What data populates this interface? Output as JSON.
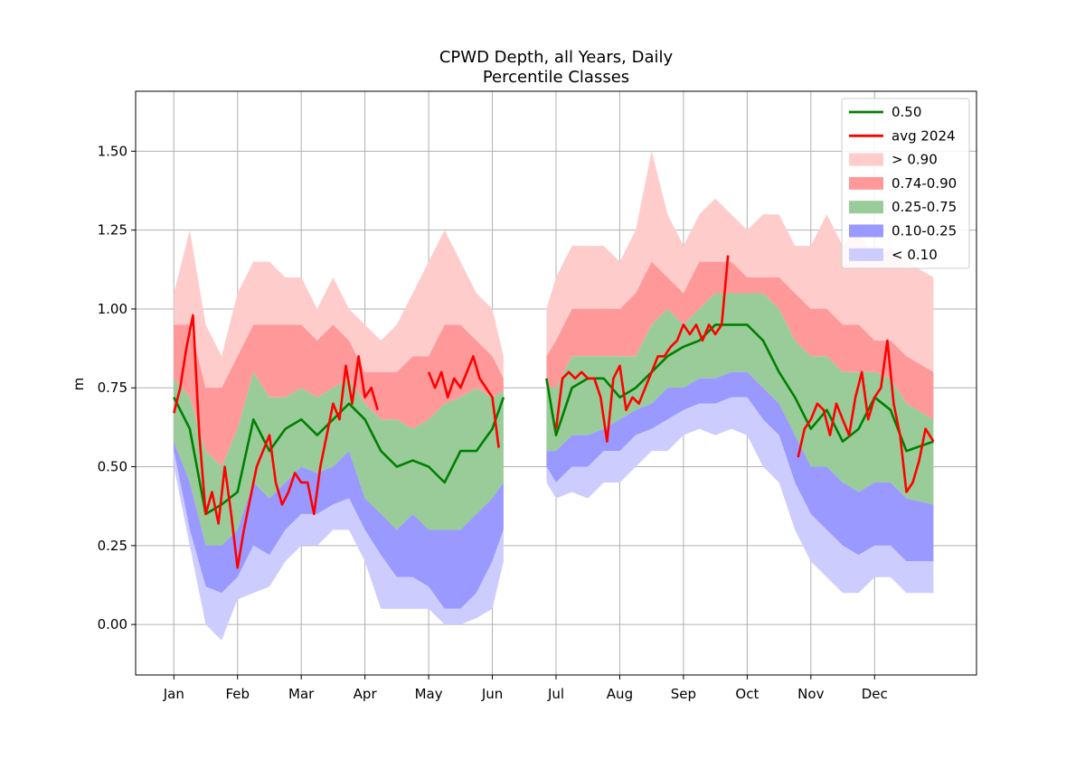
{
  "chart_data": {
    "type": "area",
    "title_line1": "CPWD Depth, all Years, Daily",
    "title_line2": "Percentile Classes",
    "ylabel": "m",
    "xlim": [
      -12,
      252
    ],
    "ylim": [
      -0.16,
      1.69
    ],
    "grid": true,
    "legend_placement": "top-right",
    "x_ticks": [
      {
        "label": "Jan",
        "x": 0
      },
      {
        "label": "Feb",
        "x": 20
      },
      {
        "label": "Mar",
        "x": 40
      },
      {
        "label": "Apr",
        "x": 60
      },
      {
        "label": "May",
        "x": 80
      },
      {
        "label": "Jun",
        "x": 100
      },
      {
        "label": "Jul",
        "x": 120
      },
      {
        "label": "Aug",
        "x": 140
      },
      {
        "label": "Sep",
        "x": 160
      },
      {
        "label": "Oct",
        "x": 180
      },
      {
        "label": "Nov",
        "x": 200
      },
      {
        "label": "Dec",
        "x": 220
      }
    ],
    "y_ticks": [
      {
        "label": "0.00",
        "value": 0.0
      },
      {
        "label": "0.25",
        "value": 0.25
      },
      {
        "label": "0.50",
        "value": 0.5
      },
      {
        "label": "0.75",
        "value": 0.75
      },
      {
        "label": "1.00",
        "value": 1.0
      },
      {
        "label": "1.25",
        "value": 1.25
      },
      {
        "label": "1.50",
        "value": 1.5
      }
    ],
    "series": [
      {
        "name": "0.50",
        "kind": "line",
        "color": "#008000"
      },
      {
        "name": "avg 2024",
        "kind": "line",
        "color": "#ff0000"
      },
      {
        "name": "> 0.90",
        "kind": "band",
        "color": "#ffcccc"
      },
      {
        "name": "0.74-0.90",
        "kind": "band",
        "color": "#ff9999"
      },
      {
        "name": "0.25-0.75",
        "kind": "band",
        "color": "#99cc99"
      },
      {
        "name": "0.10-0.25",
        "kind": "band",
        "color": "#9999ff"
      },
      {
        "name": "< 0.10",
        "kind": "band",
        "color": "#ccccff"
      }
    ],
    "segments": [
      {
        "x": [
          0,
          5,
          10,
          15,
          20,
          25,
          30,
          35,
          40,
          45,
          50,
          55,
          60,
          65,
          70,
          75,
          80,
          85,
          90,
          95,
          100,
          103.5
        ],
        "max": [
          1.05,
          1.25,
          0.95,
          0.85,
          1.05,
          1.15,
          1.15,
          1.1,
          1.1,
          1.0,
          1.1,
          1.0,
          0.95,
          0.9,
          0.95,
          1.05,
          1.15,
          1.25,
          1.15,
          1.05,
          1.0,
          0.85
        ],
        "p90": [
          0.95,
          0.95,
          0.75,
          0.75,
          0.85,
          0.95,
          0.95,
          0.95,
          0.95,
          0.9,
          0.95,
          0.9,
          0.8,
          0.8,
          0.8,
          0.85,
          0.85,
          0.95,
          0.95,
          0.9,
          0.85,
          0.78
        ],
        "p75": [
          0.78,
          0.72,
          0.55,
          0.5,
          0.62,
          0.8,
          0.72,
          0.72,
          0.75,
          0.72,
          0.75,
          0.78,
          0.7,
          0.65,
          0.65,
          0.62,
          0.65,
          0.7,
          0.72,
          0.75,
          0.72,
          0.74
        ],
        "p25": [
          0.58,
          0.45,
          0.25,
          0.25,
          0.3,
          0.45,
          0.4,
          0.45,
          0.5,
          0.48,
          0.5,
          0.55,
          0.4,
          0.35,
          0.3,
          0.35,
          0.3,
          0.3,
          0.3,
          0.35,
          0.4,
          0.45
        ],
        "p10": [
          0.55,
          0.3,
          0.12,
          0.1,
          0.15,
          0.25,
          0.22,
          0.3,
          0.35,
          0.35,
          0.38,
          0.4,
          0.3,
          0.22,
          0.15,
          0.15,
          0.12,
          0.05,
          0.05,
          0.1,
          0.2,
          0.3
        ],
        "min": [
          0.5,
          0.25,
          0.0,
          -0.05,
          0.08,
          0.1,
          0.12,
          0.2,
          0.25,
          0.25,
          0.3,
          0.3,
          0.2,
          0.05,
          0.05,
          0.05,
          0.05,
          0.0,
          0.0,
          0.02,
          0.05,
          0.2
        ],
        "median": [
          0.72,
          0.62,
          0.35,
          0.38,
          0.42,
          0.65,
          0.55,
          0.62,
          0.65,
          0.6,
          0.65,
          0.7,
          0.65,
          0.55,
          0.5,
          0.52,
          0.5,
          0.45,
          0.55,
          0.55,
          0.62,
          0.72
        ]
      },
      {
        "x": [
          117,
          120,
          125,
          130,
          135,
          140,
          145,
          150,
          155,
          160,
          165,
          170,
          175,
          180,
          185,
          190,
          195,
          200,
          205,
          210,
          215,
          220,
          225,
          230,
          238.5
        ],
        "max": [
          1.0,
          1.1,
          1.2,
          1.2,
          1.2,
          1.15,
          1.25,
          1.5,
          1.3,
          1.2,
          1.3,
          1.35,
          1.3,
          1.25,
          1.3,
          1.3,
          1.2,
          1.2,
          1.3,
          1.2,
          1.25,
          1.15,
          1.2,
          1.15,
          1.1
        ],
        "p90": [
          0.85,
          0.9,
          1.0,
          1.0,
          1.0,
          1.0,
          1.05,
          1.15,
          1.1,
          1.05,
          1.15,
          1.15,
          1.15,
          1.1,
          1.1,
          1.1,
          1.05,
          1.0,
          1.0,
          0.95,
          0.95,
          0.9,
          0.9,
          0.85,
          0.8
        ],
        "p75": [
          0.75,
          0.75,
          0.85,
          0.85,
          0.85,
          0.85,
          0.85,
          0.95,
          1.0,
          0.95,
          1.0,
          1.05,
          1.05,
          1.05,
          1.05,
          1.0,
          0.9,
          0.85,
          0.85,
          0.8,
          0.8,
          0.8,
          0.78,
          0.7,
          0.65
        ],
        "p25": [
          0.55,
          0.55,
          0.6,
          0.6,
          0.62,
          0.65,
          0.68,
          0.7,
          0.75,
          0.75,
          0.78,
          0.78,
          0.8,
          0.8,
          0.75,
          0.7,
          0.6,
          0.5,
          0.5,
          0.45,
          0.42,
          0.45,
          0.45,
          0.4,
          0.38
        ],
        "p10": [
          0.5,
          0.45,
          0.5,
          0.5,
          0.55,
          0.55,
          0.6,
          0.62,
          0.65,
          0.68,
          0.7,
          0.7,
          0.72,
          0.72,
          0.65,
          0.6,
          0.45,
          0.35,
          0.3,
          0.25,
          0.22,
          0.25,
          0.25,
          0.2,
          0.2
        ],
        "min": [
          0.45,
          0.4,
          0.42,
          0.4,
          0.45,
          0.45,
          0.5,
          0.55,
          0.55,
          0.6,
          0.62,
          0.6,
          0.62,
          0.6,
          0.5,
          0.45,
          0.3,
          0.2,
          0.15,
          0.1,
          0.1,
          0.15,
          0.15,
          0.1,
          0.1
        ],
        "median": [
          0.78,
          0.6,
          0.75,
          0.78,
          0.78,
          0.72,
          0.75,
          0.8,
          0.85,
          0.88,
          0.9,
          0.95,
          0.95,
          0.95,
          0.9,
          0.8,
          0.72,
          0.62,
          0.68,
          0.58,
          0.62,
          0.72,
          0.68,
          0.55,
          0.58
        ]
      }
    ],
    "avg_2024": [
      {
        "x": [
          0,
          2,
          4,
          6,
          8,
          10,
          12,
          14,
          16,
          18,
          20,
          22,
          24,
          26,
          28,
          30,
          32,
          34,
          36,
          38,
          40,
          42,
          44,
          46,
          48,
          50,
          52,
          54,
          56,
          58,
          60,
          62,
          64
        ],
        "y": [
          0.67,
          0.75,
          0.88,
          0.98,
          0.6,
          0.35,
          0.42,
          0.32,
          0.5,
          0.35,
          0.18,
          0.3,
          0.4,
          0.5,
          0.55,
          0.6,
          0.45,
          0.38,
          0.42,
          0.48,
          0.45,
          0.45,
          0.35,
          0.5,
          0.6,
          0.7,
          0.65,
          0.82,
          0.7,
          0.85,
          0.72,
          0.75,
          0.68
        ]
      },
      {
        "x": [
          80,
          82,
          84,
          86,
          88,
          90,
          92,
          94,
          96,
          98,
          100,
          102
        ],
        "y": [
          0.8,
          0.75,
          0.8,
          0.72,
          0.78,
          0.75,
          0.8,
          0.85,
          0.78,
          0.75,
          0.72,
          0.56
        ]
      },
      {
        "x": [
          120,
          122,
          124,
          126,
          128,
          130,
          132,
          134,
          136,
          138,
          140,
          142,
          144,
          146,
          148,
          150,
          152,
          154,
          156,
          158,
          160,
          162,
          164,
          166,
          168,
          170,
          172,
          174
        ],
        "y": [
          0.62,
          0.78,
          0.8,
          0.78,
          0.8,
          0.78,
          0.78,
          0.72,
          0.58,
          0.78,
          0.82,
          0.68,
          0.72,
          0.7,
          0.75,
          0.8,
          0.85,
          0.85,
          0.88,
          0.9,
          0.95,
          0.92,
          0.95,
          0.9,
          0.95,
          0.92,
          0.95,
          1.17
        ]
      },
      {
        "x": [
          196,
          198,
          200,
          202,
          204,
          206,
          208,
          210,
          212,
          214,
          216,
          218,
          220,
          222,
          224,
          226,
          228,
          230,
          232,
          234,
          236,
          238.5
        ],
        "y": [
          0.53,
          0.62,
          0.65,
          0.7,
          0.68,
          0.6,
          0.7,
          0.65,
          0.6,
          0.72,
          0.8,
          0.65,
          0.72,
          0.75,
          0.9,
          0.7,
          0.6,
          0.42,
          0.45,
          0.52,
          0.62,
          0.58
        ]
      }
    ]
  }
}
